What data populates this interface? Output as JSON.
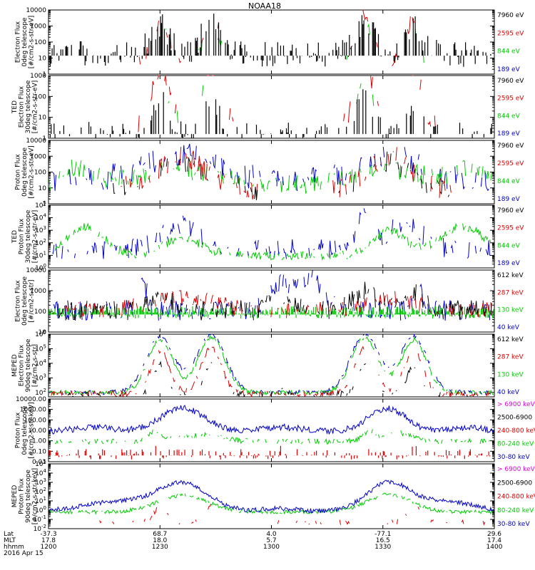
{
  "title": "NOAA18",
  "chart_data": [
    {
      "type": "line",
      "ylabel": [
        "Electron Flux",
        "0deg telescope",
        "[#/cm2-s-str-eV]"
      ],
      "yscale": "log",
      "ylim": [
        1,
        10000
      ],
      "yticks": [
        {
          "v": 1,
          "t": "1"
        },
        {
          "v": 10,
          "t": "10"
        },
        {
          "v": 100,
          "t": "100"
        },
        {
          "v": 1000,
          "t": "1000"
        },
        {
          "v": 10000,
          "t": "10000"
        }
      ],
      "series": [
        {
          "name": "7960 eV",
          "color": "#000000",
          "pattern": "sparse_black"
        },
        {
          "name": "2595 eV",
          "color": "#dd0000",
          "pattern": "tedE_red"
        },
        {
          "name": "844 eV",
          "color": "#00cc00",
          "pattern": "tedE_green"
        },
        {
          "name": "189 eV",
          "color": "#0000cc",
          "pattern": "none"
        }
      ]
    },
    {
      "type": "line",
      "ylabel": [
        "TED",
        "Electron Flux",
        "30deg telescope",
        "[#/cm2-s-str-eV]"
      ],
      "yscale": "log",
      "ylim": [
        1,
        1000
      ],
      "yticks": [
        {
          "v": 1,
          "t": "1"
        },
        {
          "v": 10,
          "t": "10"
        },
        {
          "v": 100,
          "t": "100"
        },
        {
          "v": 1000,
          "t": "1000"
        }
      ],
      "series": [
        {
          "name": "7960 eV",
          "color": "#000000",
          "pattern": "sparse_black2"
        },
        {
          "name": "2595 eV",
          "color": "#dd0000",
          "pattern": "tedE_red"
        },
        {
          "name": "844 eV",
          "color": "#00cc00",
          "pattern": "tedE_green"
        },
        {
          "name": "189 eV",
          "color": "#0000cc",
          "pattern": "blue_tick"
        }
      ]
    },
    {
      "type": "line",
      "ylabel": [
        "Proton Flux",
        "0deg telescope",
        "[#/cm2-s-str-eV]"
      ],
      "yscale": "log",
      "ylim": [
        1,
        10000
      ],
      "yticks": [
        {
          "v": 1,
          "t": "1"
        },
        {
          "v": 10,
          "t": "10"
        },
        {
          "v": 100,
          "t": "100"
        },
        {
          "v": 1000,
          "t": "1000"
        },
        {
          "v": 10000,
          "t": "10000"
        }
      ],
      "series": [
        {
          "name": "7960 eV",
          "color": "#000000",
          "pattern": "tedP_black"
        },
        {
          "name": "2595 eV",
          "color": "#dd0000",
          "pattern": "tedP_red"
        },
        {
          "name": "844 eV",
          "color": "#00cc00",
          "pattern": "tedP_green"
        },
        {
          "name": "189 eV",
          "color": "#0000cc",
          "pattern": "tedP_blue"
        }
      ]
    },
    {
      "type": "line",
      "ylabel": [
        "TED",
        "Proton Flux",
        "30deg telescope",
        "[#/cm2-s-str-eV]"
      ],
      "yscale": "log",
      "ylim": [
        1,
        100000
      ],
      "yticks": [
        {
          "v": 1,
          "t": "10^0"
        },
        {
          "v": 10,
          "t": "10^1"
        },
        {
          "v": 100,
          "t": "10^2"
        },
        {
          "v": 1000,
          "t": "10^3"
        },
        {
          "v": 10000,
          "t": "10^4"
        },
        {
          "v": 100000,
          "t": "10^5"
        }
      ],
      "series": [
        {
          "name": "7960 eV",
          "color": "#000000",
          "pattern": "none"
        },
        {
          "name": "2595 eV",
          "color": "#dd0000",
          "pattern": "none"
        },
        {
          "name": "844 eV",
          "color": "#00cc00",
          "pattern": "tedP30_green"
        },
        {
          "name": "189 eV",
          "color": "#0000cc",
          "pattern": "tedP30_blue"
        }
      ]
    },
    {
      "type": "line",
      "ylabel": [
        "Electron Flux",
        "0deg telescope",
        "[#/cm2-s-str]"
      ],
      "yscale": "log",
      "ylim": [
        10,
        10000
      ],
      "yticks": [
        {
          "v": 10,
          "t": "10"
        },
        {
          "v": 100,
          "t": "100"
        },
        {
          "v": 1000,
          "t": "1000"
        },
        {
          "v": 10000,
          "t": "10000"
        }
      ],
      "series": [
        {
          "name": "612 keV",
          "color": "#000000",
          "pattern": "mepE0_black"
        },
        {
          "name": "287 keV",
          "color": "#dd0000",
          "pattern": "mepE0_red"
        },
        {
          "name": "130 keV",
          "color": "#00cc00",
          "pattern": "mepE0_green"
        },
        {
          "name": "40 keV",
          "color": "#0000cc",
          "pattern": "mepE0_blue"
        }
      ]
    },
    {
      "type": "line",
      "ylabel": [
        "MEPED",
        "Electron Flux",
        "90deg telescope",
        "[#/cm2-s-str]"
      ],
      "yscale": "log",
      "ylim": [
        50,
        1000000
      ],
      "yticks": [
        {
          "v": 100,
          "t": "10^2"
        },
        {
          "v": 1000,
          "t": "10^3"
        },
        {
          "v": 10000,
          "t": "10^4"
        },
        {
          "v": 100000,
          "t": "10^5"
        },
        {
          "v": 1000000,
          "t": "10^6"
        }
      ],
      "series": [
        {
          "name": "612 keV",
          "color": "#000000",
          "pattern": "mep90_black"
        },
        {
          "name": "287 keV",
          "color": "#dd0000",
          "pattern": "mep90_red"
        },
        {
          "name": "130 keV",
          "color": "#00cc00",
          "pattern": "mep90_green"
        },
        {
          "name": "40 keV",
          "color": "#0000cc",
          "pattern": "mep90_blue"
        }
      ]
    },
    {
      "type": "line",
      "ylabel": [
        "Proton Flux",
        "0deg telescope",
        "[#/cm2-s-str-keV]"
      ],
      "yscale": "log",
      "ylim": [
        0.01,
        10000
      ],
      "yticks": [
        {
          "v": 0.01,
          "t": "0.01"
        },
        {
          "v": 0.1,
          "t": "0.10"
        },
        {
          "v": 1,
          "t": "1.00"
        },
        {
          "v": 10,
          "t": "10.00"
        },
        {
          "v": 100,
          "t": "100.00"
        },
        {
          "v": 1000,
          "t": "1000.00"
        },
        {
          "v": 10000,
          "t": "10000.00"
        }
      ],
      "series": [
        {
          "name": "> 6900 keV",
          "color": "#dd00dd",
          "pattern": "none"
        },
        {
          "name": "2500-6900",
          "color": "#000000",
          "pattern": "none"
        },
        {
          "name": "240-800 keV",
          "color": "#dd0000",
          "pattern": "pro0_red"
        },
        {
          "name": "80-240 keV",
          "color": "#00cc00",
          "pattern": "pro0_green"
        },
        {
          "name": "30-80 keV",
          "color": "#0000cc",
          "pattern": "pro0_blue"
        }
      ]
    },
    {
      "type": "line",
      "ylabel": [
        "MEPED",
        "Proton Flux",
        "90deg telescope",
        "[#/cm2-s-str-keV]"
      ],
      "yscale": "log",
      "ylim": [
        0.01,
        100000
      ],
      "yticks": [
        {
          "v": 0.01,
          "t": "10^-2"
        },
        {
          "v": 0.1,
          "t": "10^-1"
        },
        {
          "v": 1,
          "t": "10^0"
        },
        {
          "v": 10,
          "t": "10^1"
        },
        {
          "v": 100,
          "t": "10^2"
        },
        {
          "v": 1000,
          "t": "10^3"
        },
        {
          "v": 10000,
          "t": "10^4"
        },
        {
          "v": 100000,
          "t": "10^5"
        }
      ],
      "series": [
        {
          "name": "> 6900 keV",
          "color": "#dd00dd",
          "pattern": "none"
        },
        {
          "name": "2500-6900",
          "color": "#000000",
          "pattern": "none"
        },
        {
          "name": "240-800 keV",
          "color": "#dd0000",
          "pattern": "pro90_red"
        },
        {
          "name": "80-240 keV",
          "color": "#00cc00",
          "pattern": "pro90_green"
        },
        {
          "name": "30-80 keV",
          "color": "#0000cc",
          "pattern": "pro90_blue"
        }
      ]
    }
  ],
  "xaxis": {
    "row_labels": [
      "Lat",
      "MLT",
      "hhmm",
      "2016 Apr 15"
    ],
    "ticks": [
      {
        "lat": "-37.3",
        "mlt": "17.8",
        "hhmm": "1200"
      },
      {
        "lat": "68.7",
        "mlt": "18.0",
        "hhmm": "1230"
      },
      {
        "lat": "4.0",
        "mlt": "5.7",
        "hhmm": "1300"
      },
      {
        "lat": "-77.1",
        "mlt": "16.5",
        "hhmm": "1330"
      },
      {
        "lat": "29.6",
        "mlt": "17.4",
        "hhmm": "1400"
      }
    ]
  }
}
